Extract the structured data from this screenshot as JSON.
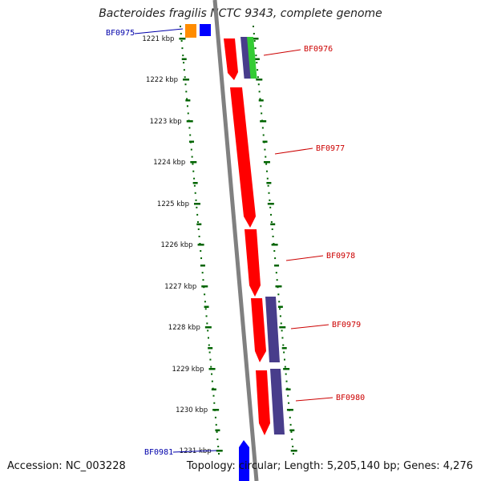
{
  "title": "Bacteroides fragilis NCTC 9343, complete genome",
  "footer": {
    "accession": "Accession: NC_003228",
    "topology": "Topology: circular; Length: 5,205,140 bp; Genes: 4,276"
  },
  "colors": {
    "backbone": "#808080",
    "forward_gene": "#ff0000",
    "reverse_gene": "#483d8b",
    "other_blue": "#0000ff",
    "orange": "#ff8c00",
    "green": "#33cc33",
    "ticks": "#006400",
    "label_red": "#cc0000",
    "label_blue": "#0000aa"
  },
  "ticks": [
    {
      "label": "1221 kbp"
    },
    {
      "label": "1222 kbp"
    },
    {
      "label": "1223 kbp"
    },
    {
      "label": "1224 kbp"
    },
    {
      "label": "1225 kbp"
    },
    {
      "label": "1226 kbp"
    },
    {
      "label": "1227 kbp"
    },
    {
      "label": "1228 kbp"
    },
    {
      "label": "1229 kbp"
    },
    {
      "label": "1230 kbp"
    },
    {
      "label": "1231 kbp"
    }
  ],
  "gene_labels": [
    {
      "text": "BF0975",
      "color": "blue"
    },
    {
      "text": "BF0976",
      "color": "red"
    },
    {
      "text": "BF0977",
      "color": "red"
    },
    {
      "text": "BF0978",
      "color": "red"
    },
    {
      "text": "BF0979",
      "color": "red"
    },
    {
      "text": "BF0980",
      "color": "red"
    },
    {
      "text": "BF0981",
      "color": "blue"
    }
  ]
}
